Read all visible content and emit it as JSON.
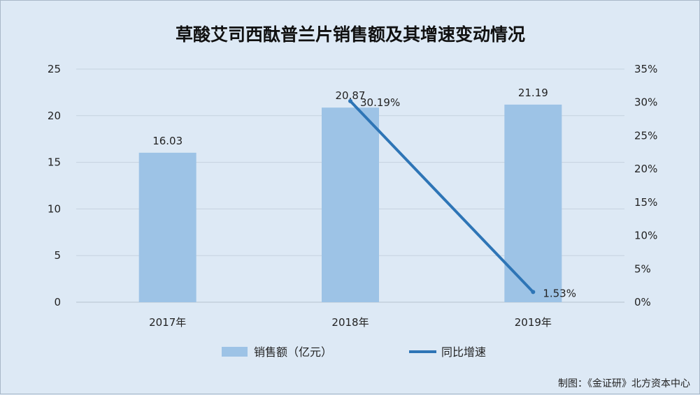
{
  "chart_data": {
    "type": "bar",
    "title": "草酸艾司西酞普兰片销售额及其增速变动情况",
    "categories": [
      "2017年",
      "2018年",
      "2019年"
    ],
    "series": [
      {
        "name": "销售额（亿元）",
        "type": "bar",
        "axis": "left",
        "values": [
          16.03,
          20.87,
          21.19
        ],
        "labels": [
          "16.03",
          "20.87",
          "21.19"
        ],
        "color": "#9dc3e6"
      },
      {
        "name": "同比增速",
        "type": "line",
        "axis": "right",
        "values": [
          null,
          30.19,
          1.53
        ],
        "labels": [
          "",
          "30.19%",
          "1.53%"
        ],
        "color": "#2e75b6"
      }
    ],
    "y_left": {
      "min": 0,
      "max": 25,
      "ticks": [
        "0",
        "5",
        "10",
        "15",
        "20",
        "25"
      ]
    },
    "y_right": {
      "min": 0,
      "max": 35,
      "ticks": [
        "0%",
        "5%",
        "10%",
        "15%",
        "20%",
        "25%",
        "30%",
        "35%"
      ]
    },
    "grid": true,
    "legend": "bottom"
  },
  "credit": "制图：《金证研》北方资本中心",
  "colors": {
    "background": "#dde9f5",
    "bar": "#9dc3e6",
    "line": "#2e75b6",
    "grid": "#c5d2df"
  }
}
